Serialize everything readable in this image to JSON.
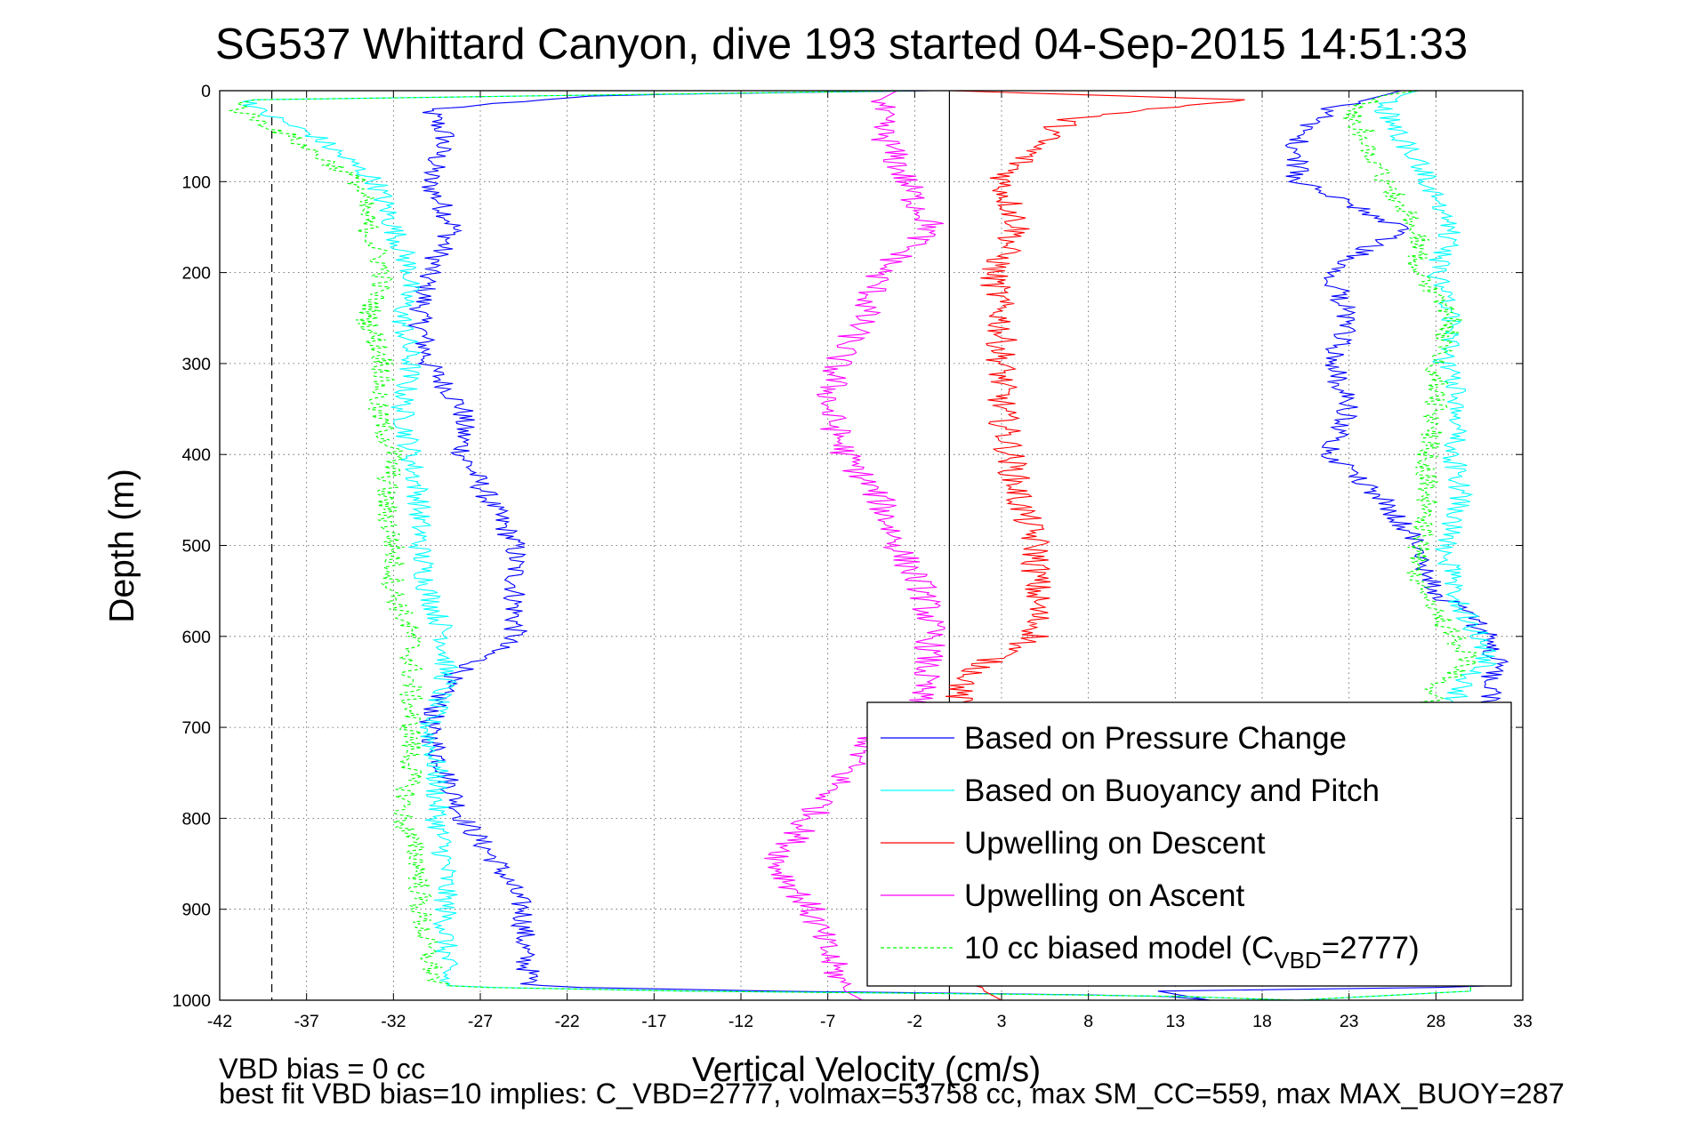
{
  "chart_data": {
    "type": "line",
    "title": "SG537 Whittard Canyon, dive 193 started 04-Sep-2015 14:51:33",
    "xlabel": "Vertical Velocity (cm/s)",
    "ylabel": "Depth (m)",
    "xlim": [
      -42,
      33
    ],
    "ylim": [
      1000,
      0
    ],
    "x_ticks": [
      -42,
      -37,
      -32,
      -27,
      -22,
      -17,
      -12,
      -7,
      -2,
      3,
      8,
      13,
      18,
      23,
      28,
      33
    ],
    "y_ticks": [
      0,
      100,
      200,
      300,
      400,
      500,
      600,
      700,
      800,
      900,
      1000
    ],
    "grid": "dotted",
    "legend_position": "bottom-right",
    "reference_lines": [
      {
        "x": -39,
        "style": "dashed",
        "color": "#000000"
      },
      {
        "x": 0,
        "style": "solid",
        "color": "#000000"
      }
    ],
    "series": [
      {
        "name": "Based on Pressure Change",
        "color": "#0000ff",
        "style": "solid",
        "depth": [
          0,
          5,
          20,
          50,
          100,
          150,
          200,
          250,
          300,
          350,
          400,
          450,
          500,
          550,
          600,
          650,
          700,
          750,
          800,
          850,
          900,
          950,
          985,
          990,
          995,
          1000
        ],
        "x": [
          -1,
          -20,
          -30,
          -29,
          -30,
          -28.5,
          -30,
          -30.5,
          -30,
          -28,
          -28,
          -26.5,
          -25,
          -25,
          -25,
          -29,
          -30,
          -29,
          -28,
          -26,
          -24.5,
          -24.5,
          -24,
          -10,
          12,
          15
        ],
        "depth_ascent": [
          1000,
          990,
          985,
          950,
          900,
          850,
          800,
          750,
          700,
          650,
          630,
          600,
          580,
          550,
          500,
          450,
          400,
          350,
          300,
          250,
          200,
          150,
          100,
          50,
          20,
          5,
          0
        ],
        "x_ascent": [
          15,
          12,
          32,
          31,
          30,
          30,
          30,
          30,
          31.5,
          31,
          31.5,
          31,
          30,
          28,
          27,
          25,
          22,
          23,
          22,
          23,
          22,
          26,
          20,
          20,
          22,
          25,
          26
        ]
      },
      {
        "name": "Based on Buoyancy and Pitch",
        "color": "#00ffff",
        "style": "solid",
        "depth": [
          0,
          10,
          20,
          50,
          100,
          150,
          200,
          250,
          300,
          350,
          400,
          450,
          500,
          550,
          600,
          650,
          700,
          750,
          800,
          850,
          900,
          950,
          985,
          990,
          995,
          1000
        ],
        "x": [
          -2,
          -40,
          -40,
          -36.5,
          -33,
          -32,
          -31,
          -31.5,
          -31,
          -31.5,
          -31,
          -30.5,
          -30.5,
          -30,
          -29,
          -29,
          -30,
          -29.5,
          -29.5,
          -29,
          -29,
          -29,
          -29,
          -15,
          12,
          20
        ],
        "depth_ascent": [
          1000,
          990,
          950,
          900,
          850,
          800,
          750,
          700,
          650,
          630,
          600,
          550,
          500,
          450,
          400,
          350,
          300,
          250,
          200,
          150,
          100,
          50,
          20,
          5,
          0
        ],
        "x_ascent": [
          20,
          30,
          30,
          30,
          30,
          29.5,
          29,
          28.5,
          29.5,
          31,
          30.5,
          29,
          28.5,
          29.5,
          29,
          29.5,
          28.5,
          29,
          28,
          29,
          27.5,
          26,
          25,
          26,
          27
        ]
      },
      {
        "name": "Upwelling on Descent",
        "color": "#ff0000",
        "style": "solid",
        "depth": [
          0,
          10,
          30,
          60,
          100,
          150,
          200,
          250,
          300,
          350,
          400,
          450,
          500,
          550,
          600,
          630,
          660,
          700,
          750,
          800,
          850,
          900,
          950,
          990,
          1000
        ],
        "x": [
          0,
          17,
          7,
          5,
          3,
          4,
          2.5,
          3,
          3,
          3,
          3.5,
          4,
          5,
          5,
          5,
          2,
          0.5,
          0.5,
          1,
          0.5,
          1,
          0.5,
          1,
          2,
          3
        ]
      },
      {
        "name": "Upwelling on Ascent",
        "color": "#ff00ff",
        "style": "solid",
        "depth": [
          0,
          10,
          40,
          80,
          120,
          150,
          200,
          250,
          300,
          350,
          400,
          450,
          500,
          550,
          600,
          650,
          680,
          700,
          750,
          800,
          850,
          900,
          950,
          990,
          1000
        ],
        "x": [
          -3,
          -4,
          -4,
          -3,
          -2,
          -1,
          -4,
          -5,
          -6.5,
          -7,
          -6,
          -4,
          -3,
          -1.5,
          -1,
          -1.5,
          -2,
          -4,
          -6,
          -8,
          -10,
          -8,
          -7,
          -6,
          -5
        ]
      },
      {
        "name": "10 cc biased model (C_VBD=2777)",
        "color": "#00ff00",
        "style": "dashed",
        "depth": [
          0,
          10,
          20,
          50,
          100,
          150,
          200,
          250,
          300,
          350,
          400,
          450,
          500,
          550,
          600,
          650,
          700,
          750,
          800,
          850,
          900,
          950,
          985,
          990,
          995,
          1000
        ],
        "x": [
          -2,
          -40,
          -41,
          -38,
          -34,
          -33.5,
          -32.5,
          -33.5,
          -32.5,
          -33,
          -32,
          -32.5,
          -32,
          -32,
          -31,
          -31,
          -31,
          -31,
          -31.5,
          -30.5,
          -30.5,
          -30,
          -29.5,
          -15,
          12,
          20
        ],
        "depth_ascent": [
          1000,
          990,
          950,
          900,
          850,
          800,
          750,
          700,
          660,
          630,
          600,
          550,
          500,
          450,
          400,
          350,
          300,
          250,
          200,
          150,
          100,
          50,
          20,
          5,
          0
        ],
        "x_ascent": [
          20,
          30,
          30,
          30,
          30,
          29.5,
          29,
          28.5,
          27.5,
          30,
          29,
          27,
          27,
          27.5,
          27.5,
          28,
          28,
          29,
          27,
          27,
          25,
          24,
          23,
          25,
          27
        ]
      }
    ]
  },
  "legend": {
    "items": [
      {
        "label": "Based on Pressure Change",
        "color": "#0000ff",
        "dashed": false
      },
      {
        "label": "Based on Buoyancy and Pitch",
        "color": "#00ffff",
        "dashed": false
      },
      {
        "label": "Upwelling on Descent",
        "color": "#ff0000",
        "dashed": false
      },
      {
        "label": "Upwelling on Ascent",
        "color": "#ff00ff",
        "dashed": false
      },
      {
        "label": "10 cc biased model (C",
        "label_sub": "VBD",
        "label_tail": "=2777)",
        "color": "#00ff00",
        "dashed": true
      }
    ]
  },
  "footer": {
    "line1": "VBD bias = 0 cc",
    "line2": "best fit VBD bias=10 implies: C_VBD=2777, volmax=53758 cc, max SM_CC=559, max MAX_BUOY=287"
  }
}
